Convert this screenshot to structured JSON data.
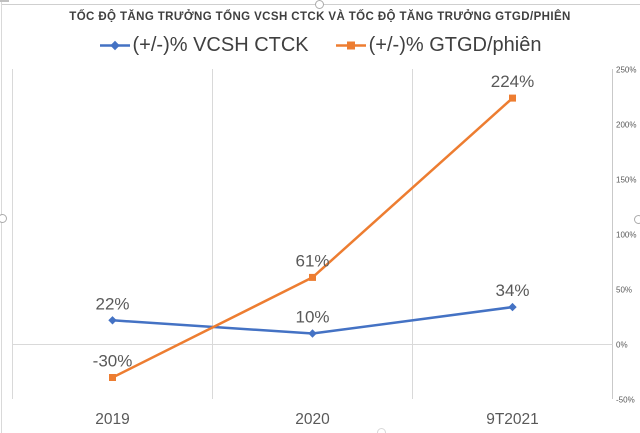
{
  "chart_data": {
    "type": "line",
    "title": "TỐC ĐỘ TĂNG TRƯỞNG TỔNG VCSH CTCK VÀ TỐC ĐỘ TĂNG TRƯỞNG GTGD/PHIÊN",
    "categories": [
      "2019",
      "2020",
      "9T2021"
    ],
    "series": [
      {
        "name": "(+/-)% VCSH CTCK",
        "color": "#4472C4",
        "marker": "diamond",
        "values": [
          22,
          10,
          34
        ],
        "data_labels": [
          "22%",
          "10%",
          "34%"
        ]
      },
      {
        "name": "(+/-)% GTGD/phiên",
        "color": "#ED7D31",
        "marker": "square",
        "values": [
          -30,
          61,
          224
        ],
        "data_labels": [
          "-30%",
          "61%",
          "224%"
        ]
      }
    ],
    "x_axis": {
      "tick_labels": [
        "2019",
        "2020",
        "9T2021"
      ]
    },
    "y_axis": {
      "side": "right",
      "min": -50,
      "max": 250,
      "tick_step": 50,
      "tick_labels": [
        "250%",
        "200%",
        "150%",
        "100%",
        "50%",
        "0%",
        "-50%"
      ]
    },
    "legend_position": "top",
    "gridlines": {
      "vertical": true,
      "horizontal": "zero-line-only"
    }
  },
  "colors": {
    "series_blue": "#4472C4",
    "series_orange": "#ED7D31",
    "gridline": "#D9D9D9",
    "axis_line": "#C9C9C9",
    "data_label_text": "#595959",
    "axis_tick_text": "#595959",
    "title_text": "#3F3F3F",
    "legend_text": "#404040"
  }
}
